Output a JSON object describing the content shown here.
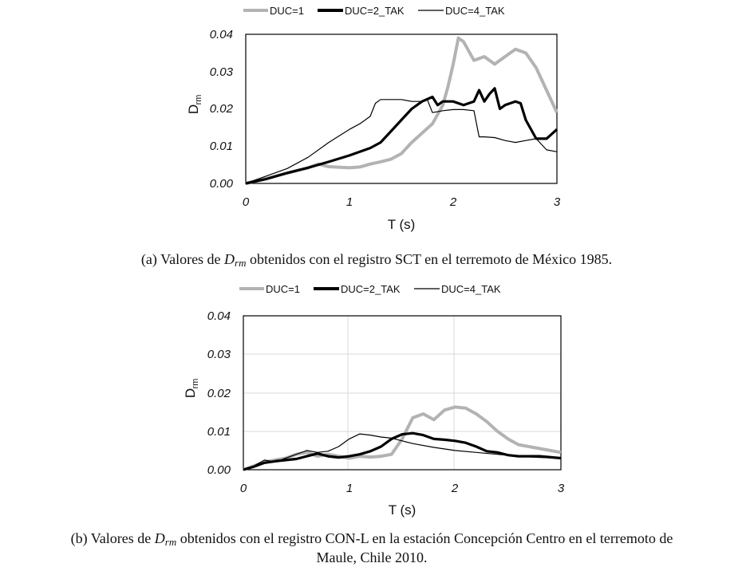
{
  "chart_data": [
    {
      "type": "line",
      "title": "",
      "xlabel": "T (s)",
      "ylabel_main": "D",
      "ylabel_sub": "rm",
      "xlim": [
        0,
        3
      ],
      "ylim": [
        0,
        0.04
      ],
      "x_ticks": [
        "0",
        "1",
        "2",
        "3"
      ],
      "y_ticks": [
        "0.00",
        "0.01",
        "0.02",
        "0.03",
        "0.04"
      ],
      "legend_position": "top",
      "caption": {
        "prefix": "(a)  Valores de ",
        "var_main": "D",
        "var_sub": "rm",
        "rest": " obtenidos con el registro SCT en el terremoto de México 1985."
      },
      "series": [
        {
          "name": "DUC=1",
          "color": "#b3b3b3",
          "style": "thick",
          "x": [
            0,
            0.2,
            0.4,
            0.6,
            0.7,
            0.8,
            1.0,
            1.1,
            1.2,
            1.3,
            1.4,
            1.5,
            1.6,
            1.7,
            1.8,
            1.9,
            1.95,
            2.0,
            2.05,
            2.1,
            2.2,
            2.3,
            2.4,
            2.5,
            2.6,
            2.7,
            2.8,
            2.9,
            3.0
          ],
          "y": [
            0,
            0.0013,
            0.0028,
            0.0042,
            0.0052,
            0.0045,
            0.0042,
            0.0044,
            0.0052,
            0.0058,
            0.0065,
            0.008,
            0.011,
            0.0135,
            0.016,
            0.021,
            0.026,
            0.032,
            0.039,
            0.038,
            0.033,
            0.034,
            0.032,
            0.034,
            0.036,
            0.035,
            0.031,
            0.025,
            0.019
          ]
        },
        {
          "name": "DUC=2_TAK",
          "color": "#000000",
          "style": "bold",
          "x": [
            0,
            0.2,
            0.4,
            0.6,
            0.8,
            1.0,
            1.2,
            1.3,
            1.4,
            1.5,
            1.6,
            1.7,
            1.8,
            1.85,
            1.9,
            2.0,
            2.1,
            2.2,
            2.25,
            2.3,
            2.35,
            2.4,
            2.45,
            2.5,
            2.6,
            2.65,
            2.7,
            2.8,
            2.9,
            3.0
          ],
          "y": [
            0,
            0.0012,
            0.0028,
            0.0042,
            0.0058,
            0.0075,
            0.0095,
            0.011,
            0.014,
            0.017,
            0.02,
            0.022,
            0.0232,
            0.021,
            0.022,
            0.022,
            0.021,
            0.022,
            0.025,
            0.022,
            0.024,
            0.0255,
            0.02,
            0.021,
            0.022,
            0.0215,
            0.017,
            0.012,
            0.012,
            0.0145
          ]
        },
        {
          "name": "DUC=4_TAK",
          "color": "#000000",
          "style": "thin",
          "x": [
            0,
            0.2,
            0.4,
            0.6,
            0.8,
            1.0,
            1.1,
            1.2,
            1.25,
            1.3,
            1.5,
            1.6,
            1.7,
            1.75,
            1.8,
            1.9,
            2.0,
            2.1,
            2.2,
            2.25,
            2.3,
            2.4,
            2.5,
            2.6,
            2.7,
            2.8,
            2.9,
            3.0
          ],
          "y": [
            0,
            0.002,
            0.004,
            0.007,
            0.011,
            0.0145,
            0.016,
            0.018,
            0.0215,
            0.0225,
            0.0225,
            0.022,
            0.022,
            0.0225,
            0.019,
            0.0195,
            0.0198,
            0.0198,
            0.0195,
            0.0125,
            0.0125,
            0.0123,
            0.0115,
            0.011,
            0.0115,
            0.012,
            0.009,
            0.0085
          ]
        }
      ]
    },
    {
      "type": "line",
      "title": "",
      "xlabel": "T (s)",
      "ylabel_main": "D",
      "ylabel_sub": "rm",
      "xlim": [
        0,
        3
      ],
      "ylim": [
        0,
        0.04
      ],
      "x_ticks": [
        "0",
        "1",
        "2",
        "3"
      ],
      "y_ticks": [
        "0.00",
        "0.01",
        "0.02",
        "0.03",
        "0.04"
      ],
      "legend_position": "top",
      "caption": {
        "prefix": "(b) Valores de ",
        "var_main": "D",
        "var_sub": "rm",
        "rest": " obtenidos con el registro CON-L en la estación Concepción Centro en el terremoto de",
        "line2": "Maule, Chile 2010."
      },
      "series": [
        {
          "name": "DUC=1",
          "color": "#b3b3b3",
          "style": "thick",
          "x": [
            0,
            0.1,
            0.2,
            0.3,
            0.4,
            0.5,
            0.6,
            0.7,
            0.8,
            0.9,
            1.0,
            1.1,
            1.2,
            1.3,
            1.4,
            1.5,
            1.6,
            1.7,
            1.8,
            1.9,
            2.0,
            2.1,
            2.2,
            2.3,
            2.4,
            2.5,
            2.6,
            2.8,
            3.0
          ],
          "y": [
            0,
            0.001,
            0.002,
            0.0025,
            0.003,
            0.004,
            0.0045,
            0.0035,
            0.004,
            0.0035,
            0.003,
            0.0035,
            0.0033,
            0.0035,
            0.004,
            0.008,
            0.0135,
            0.0145,
            0.013,
            0.0155,
            0.0163,
            0.016,
            0.0145,
            0.0125,
            0.01,
            0.008,
            0.0065,
            0.0055,
            0.0045
          ]
        },
        {
          "name": "DUC=2_TAK",
          "color": "#000000",
          "style": "bold",
          "x": [
            0,
            0.1,
            0.2,
            0.3,
            0.4,
            0.5,
            0.6,
            0.7,
            0.8,
            0.9,
            1.0,
            1.1,
            1.2,
            1.3,
            1.4,
            1.5,
            1.6,
            1.7,
            1.8,
            1.9,
            2.0,
            2.1,
            2.2,
            2.3,
            2.4,
            2.5,
            2.6,
            2.8,
            3.0
          ],
          "y": [
            0,
            0.0008,
            0.0018,
            0.0022,
            0.0025,
            0.0028,
            0.0035,
            0.0042,
            0.0035,
            0.0032,
            0.0035,
            0.004,
            0.0048,
            0.006,
            0.008,
            0.0092,
            0.0095,
            0.009,
            0.008,
            0.0078,
            0.0075,
            0.007,
            0.006,
            0.0048,
            0.0045,
            0.0038,
            0.0035,
            0.0035,
            0.003
          ]
        },
        {
          "name": "DUC=4_TAK",
          "color": "#000000",
          "style": "thin",
          "x": [
            0,
            0.1,
            0.2,
            0.3,
            0.4,
            0.5,
            0.6,
            0.7,
            0.8,
            0.9,
            1.0,
            1.1,
            1.2,
            1.3,
            1.4,
            1.5,
            1.6,
            1.8,
            2.0,
            2.2,
            2.4,
            2.6,
            2.8,
            3.0
          ],
          "y": [
            0,
            0.001,
            0.0025,
            0.002,
            0.003,
            0.004,
            0.005,
            0.0045,
            0.0048,
            0.006,
            0.008,
            0.0093,
            0.009,
            0.0085,
            0.0082,
            0.0075,
            0.0068,
            0.0058,
            0.005,
            0.0045,
            0.004,
            0.0035,
            0.0032,
            0.003
          ]
        }
      ]
    }
  ]
}
